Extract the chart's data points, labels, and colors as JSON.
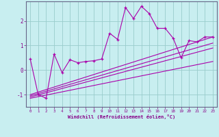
{
  "xlabel": "Windchill (Refroidissement éolien,°C)",
  "bg_color": "#c8eef0",
  "line_color": "#aa00aa",
  "grid_color": "#99cccc",
  "axis_color": "#666688",
  "text_color": "#880088",
  "xlim": [
    -0.5,
    23.5
  ],
  "ylim": [
    -1.5,
    2.8
  ],
  "xticks": [
    0,
    1,
    2,
    3,
    4,
    5,
    6,
    7,
    8,
    9,
    10,
    11,
    12,
    13,
    14,
    15,
    16,
    17,
    18,
    19,
    20,
    21,
    22,
    23
  ],
  "yticks": [
    -1,
    0,
    1,
    2
  ],
  "main_x": [
    0,
    1,
    2,
    3,
    4,
    5,
    6,
    7,
    8,
    9,
    10,
    11,
    12,
    13,
    14,
    15,
    16,
    17,
    18,
    19,
    20,
    21,
    22,
    23
  ],
  "main_y": [
    0.45,
    -1.0,
    -1.15,
    0.65,
    -0.1,
    0.42,
    0.3,
    0.35,
    0.38,
    0.45,
    1.5,
    1.25,
    2.55,
    2.1,
    2.6,
    2.3,
    1.7,
    1.7,
    1.3,
    0.5,
    1.2,
    1.15,
    1.35,
    1.35
  ],
  "line1_x": [
    0,
    23
  ],
  "line1_y": [
    -1.0,
    1.35
  ],
  "line2_x": [
    0,
    23
  ],
  "line2_y": [
    -1.05,
    1.1
  ],
  "line3_x": [
    0,
    23
  ],
  "line3_y": [
    -1.1,
    0.9
  ],
  "line4_x": [
    0,
    23
  ],
  "line4_y": [
    -1.15,
    0.35
  ]
}
